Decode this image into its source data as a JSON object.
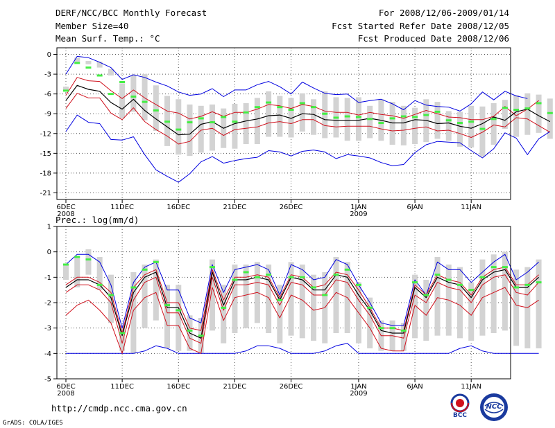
{
  "header": {
    "title": "DERF/NCC/BCC Monthly Forecast",
    "member_size": "Member Size=40",
    "variable": "Mean Surf. Temp.: °C",
    "period": "For 2008/12/06-2009/01/14",
    "started": "Fcst Started Refer Date 2008/12/05",
    "produced": "Fcst Produced Date 2008/12/06"
  },
  "footer": {
    "url": "http://cmdp.ncc.cma.gov.cn",
    "credit": "GrADS: COLA/IGES",
    "logo_left_text": "BCC",
    "logo_right_text": "NCC"
  },
  "colors": {
    "band": "#d3d3d3",
    "mean": "#000000",
    "spread": "#d0101c",
    "extreme": "#0000e0",
    "obs": "#44ee44"
  },
  "chart_data": [
    {
      "type": "line",
      "title": "Mean Surf. Temp.: °C",
      "ylim": [
        -22,
        1
      ],
      "yticks": [
        0,
        -3,
        -6,
        -9,
        -12,
        -15,
        -18,
        -21
      ],
      "xlim": [
        0,
        39.5
      ],
      "xticks": [
        {
          "label": "6DEC",
          "sub": "2008",
          "day": 0
        },
        {
          "label": "11DEC",
          "sub": "",
          "day": 5
        },
        {
          "label": "16DEC",
          "sub": "",
          "day": 10
        },
        {
          "label": "21DEC",
          "sub": "",
          "day": 15
        },
        {
          "label": "26DEC",
          "sub": "",
          "day": 20
        },
        {
          "label": "1JAN",
          "sub": "2009",
          "day": 26
        },
        {
          "label": "6JAN",
          "sub": "",
          "day": 31
        },
        {
          "label": "11JAN",
          "sub": "",
          "day": 36
        }
      ],
      "series": [
        {
          "name": "max",
          "values": [
            -3.0,
            -0.3,
            -0.5,
            -1.2,
            -2.0,
            -3.8,
            -3.1,
            -3.5,
            -4.2,
            -4.8,
            -5.7,
            -6.2,
            -6.0,
            -5.2,
            -6.4,
            -5.4,
            -5.4,
            -4.6,
            -4.1,
            -4.9,
            -6.0,
            -4.2,
            -5.1,
            -5.9,
            -6.1,
            -6.0,
            -7.3,
            -7.0,
            -6.8,
            -7.5,
            -8.4,
            -7.0,
            -7.7,
            -7.9,
            -8.0,
            -8.6,
            -7.5,
            -5.7,
            -6.9,
            -5.6,
            -6.3,
            -6.7
          ]
        },
        {
          "name": "p_high",
          "values": [
            -6.2,
            -3.5,
            -4.0,
            -4.1,
            -5.5,
            -6.7,
            -5.4,
            -6.6,
            -7.6,
            -8.6,
            -8.9,
            -9.8,
            -9.4,
            -8.7,
            -9.4,
            -8.8,
            -8.8,
            -8.3,
            -7.6,
            -7.8,
            -8.2,
            -7.6,
            -7.9,
            -8.6,
            -8.8,
            -8.8,
            -9.2,
            -8.8,
            -9.1,
            -9.3,
            -9.7,
            -9.1,
            -8.5,
            -9.0,
            -9.5,
            -9.6,
            -9.9,
            -9.9,
            -9.4,
            -7.9,
            -9.3,
            -8.3,
            -7.0
          ]
        },
        {
          "name": "mean",
          "values": [
            -7.0,
            -4.7,
            -5.3,
            -5.6,
            -7.3,
            -8.3,
            -6.8,
            -8.5,
            -9.8,
            -11.0,
            -12.2,
            -12.1,
            -10.6,
            -10.2,
            -11.2,
            -10.5,
            -10.1,
            -9.8,
            -9.3,
            -9.2,
            -9.7,
            -9.0,
            -9.1,
            -9.9,
            -10.0,
            -10.0,
            -10.0,
            -9.7,
            -10.0,
            -10.4,
            -10.4,
            -9.9,
            -10.0,
            -10.5,
            -10.4,
            -10.9,
            -11.2,
            -10.5,
            -9.5,
            -10.0,
            -8.7,
            -8.3,
            -9.3,
            -10.2
          ]
        },
        {
          "name": "p_low",
          "values": [
            -8.2,
            -5.9,
            -6.6,
            -6.6,
            -8.9,
            -9.9,
            -8.1,
            -10.2,
            -11.4,
            -12.4,
            -13.6,
            -13.2,
            -11.5,
            -11.2,
            -12.3,
            -11.4,
            -11.2,
            -11.0,
            -10.4,
            -10.2,
            -10.5,
            -9.9,
            -9.9,
            -10.8,
            -11.0,
            -10.9,
            -10.9,
            -10.9,
            -11.3,
            -11.6,
            -11.5,
            -11.2,
            -11.0,
            -11.6,
            -11.5,
            -12.0,
            -12.6,
            -11.8,
            -10.7,
            -11.0,
            -9.6,
            -9.8,
            -10.8,
            -11.8
          ]
        },
        {
          "name": "min",
          "values": [
            -11.7,
            -9.2,
            -10.3,
            -10.5,
            -12.9,
            -13.0,
            -12.5,
            -15.2,
            -17.5,
            -18.5,
            -19.4,
            -18.1,
            -16.3,
            -15.5,
            -16.5,
            -16.1,
            -15.8,
            -15.6,
            -14.6,
            -14.8,
            -15.4,
            -14.7,
            -14.5,
            -14.8,
            -15.8,
            -15.2,
            -15.4,
            -15.7,
            -16.4,
            -16.9,
            -16.7,
            -14.9,
            -13.7,
            -13.2,
            -13.3,
            -13.4,
            -14.6,
            -15.7,
            -14.3,
            -11.9,
            -12.7,
            -15.2,
            -12.8,
            -11.7
          ]
        },
        {
          "name": "band_top",
          "values": [
            -4.9,
            -0.5,
            -1.0,
            -1.1,
            -2.2,
            -4.4,
            -3.2,
            -3.0,
            -4.7,
            -6.3,
            -6.8,
            -7.6,
            -7.8,
            -7.6,
            -8.2,
            -7.5,
            -7.4,
            -6.6,
            -5.6,
            -6.3,
            -6.6,
            -5.9,
            -6.8,
            -5.6,
            -6.5,
            -6.6,
            -6.5,
            -7.8,
            -6.8,
            -7.2,
            -7.8,
            -8.1,
            -6.8,
            -7.2,
            -8.6,
            -8.7,
            -7.8,
            -7.9,
            -7.4,
            -6.9,
            -6.2,
            -5.9,
            -6.1,
            -6.7
          ]
        },
        {
          "name": "band_bottom",
          "values": [
            -5.4,
            -1.2,
            -1.5,
            -2.0,
            -3.2,
            -9.7,
            -8.7,
            -10.0,
            -11.6,
            -13.9,
            -15.2,
            -15.4,
            -14.9,
            -14.6,
            -14.2,
            -14.3,
            -13.6,
            -13.6,
            -12.5,
            -12.5,
            -12.6,
            -11.7,
            -12.2,
            -12.7,
            -12.6,
            -13.1,
            -13.1,
            -12.7,
            -13.1,
            -13.7,
            -13.8,
            -13.6,
            -13.3,
            -12.8,
            -13.1,
            -14.0,
            -14.1,
            -15.5,
            -13.7,
            -11.3,
            -12.5,
            -12.2,
            -11.9,
            -12.8
          ]
        },
        {
          "name": "observed",
          "values": [
            -5.5,
            -1.3,
            -2.0,
            -3.2,
            -6.0,
            -4.2,
            -6.4,
            -7.2,
            -8.5,
            -10.2,
            -11.4,
            -10.3,
            -9.7,
            -10.3,
            -9.5,
            -10.2,
            -8.8,
            -8.0,
            -7.3,
            -8.0,
            -8.4,
            -7.4,
            -8.0,
            -9.0,
            -9.6,
            -9.4,
            -9.5,
            -9.8,
            -10.4,
            -9.7,
            -9.4,
            -9.5,
            -9.2,
            -8.7,
            -10.0,
            -10.4,
            -10.2,
            -11.3,
            -9.8,
            -8.1,
            -8.4,
            -8.2,
            -7.4,
            -8.9
          ]
        }
      ]
    },
    {
      "type": "line",
      "title": "Prec.: log(mm/d)",
      "ylim": [
        -5,
        1
      ],
      "yticks": [
        1,
        0,
        -1,
        -2,
        -3,
        -4,
        -5
      ],
      "xlim": [
        0,
        39.5
      ],
      "xticks": [
        {
          "label": "6DEC",
          "sub": "2008",
          "day": 0
        },
        {
          "label": "11DEC",
          "sub": "",
          "day": 5
        },
        {
          "label": "16DEC",
          "sub": "",
          "day": 10
        },
        {
          "label": "21DEC",
          "sub": "",
          "day": 15
        },
        {
          "label": "26DEC",
          "sub": "",
          "day": 20
        },
        {
          "label": "1JAN",
          "sub": "2009",
          "day": 26
        },
        {
          "label": "6JAN",
          "sub": "",
          "day": 31
        },
        {
          "label": "11JAN",
          "sub": "",
          "day": 36
        }
      ],
      "series": [
        {
          "name": "max",
          "values": [
            -0.5,
            -0.1,
            -0.1,
            -0.4,
            -1.3,
            -3.0,
            -1.2,
            -0.6,
            -0.4,
            -1.5,
            -1.5,
            -2.6,
            -2.8,
            -0.5,
            -1.6,
            -0.7,
            -0.6,
            -0.5,
            -0.7,
            -1.7,
            -0.5,
            -0.7,
            -1.1,
            -1.0,
            -0.3,
            -0.5,
            -1.3,
            -2.0,
            -2.8,
            -2.9,
            -2.9,
            -1.1,
            -1.7,
            -0.4,
            -0.7,
            -0.7,
            -1.2,
            -0.8,
            -0.4,
            -0.1,
            -1.1,
            -0.8,
            -0.4
          ]
        },
        {
          "name": "p_high",
          "values": [
            -1.3,
            -1.0,
            -1.0,
            -1.2,
            -1.6,
            -3.2,
            -1.4,
            -0.9,
            -0.7,
            -2.0,
            -2.0,
            -3.0,
            -3.1,
            -0.7,
            -1.9,
            -1.0,
            -1.0,
            -0.9,
            -1.0,
            -1.8,
            -0.9,
            -1.0,
            -1.4,
            -1.3,
            -0.8,
            -0.9,
            -1.5,
            -2.2,
            -3.0,
            -3.0,
            -3.1,
            -1.3,
            -1.7,
            -0.9,
            -1.1,
            -1.2,
            -1.7,
            -1.0,
            -0.7,
            -0.6,
            -1.3,
            -1.3,
            -0.9
          ]
        },
        {
          "name": "mean",
          "values": [
            -1.4,
            -1.1,
            -1.1,
            -1.3,
            -1.8,
            -3.3,
            -1.6,
            -1.0,
            -0.8,
            -2.2,
            -2.2,
            -3.2,
            -3.4,
            -0.8,
            -2.1,
            -1.1,
            -1.1,
            -1.0,
            -1.1,
            -1.9,
            -1.0,
            -1.1,
            -1.5,
            -1.5,
            -0.9,
            -1.0,
            -1.7,
            -2.3,
            -3.1,
            -3.2,
            -3.2,
            -1.4,
            -1.8,
            -1.0,
            -1.2,
            -1.3,
            -1.8,
            -1.1,
            -0.8,
            -0.7,
            -1.4,
            -1.4,
            -1.0
          ]
        },
        {
          "name": "p_low",
          "values": [
            -1.6,
            -1.3,
            -1.3,
            -1.5,
            -2.0,
            -3.6,
            -1.9,
            -1.2,
            -1.0,
            -2.4,
            -2.4,
            -3.4,
            -3.6,
            -1.0,
            -2.3,
            -1.3,
            -1.3,
            -1.2,
            -1.3,
            -2.1,
            -1.2,
            -1.3,
            -1.7,
            -1.7,
            -1.1,
            -1.2,
            -1.9,
            -2.5,
            -3.3,
            -3.3,
            -3.4,
            -1.7,
            -2.0,
            -1.2,
            -1.4,
            -1.5,
            -2.0,
            -1.3,
            -1.0,
            -0.9,
            -1.6,
            -1.7,
            -1.2
          ]
        },
        {
          "name": "p_lowest",
          "values": [
            -2.5,
            -2.1,
            -1.9,
            -2.3,
            -2.8,
            -4.0,
            -2.3,
            -1.8,
            -1.6,
            -2.9,
            -2.9,
            -3.8,
            -4.0,
            -1.4,
            -2.7,
            -1.8,
            -1.7,
            -1.6,
            -1.8,
            -2.6,
            -1.7,
            -1.9,
            -2.3,
            -2.2,
            -1.6,
            -1.8,
            -2.4,
            -3.0,
            -3.8,
            -3.9,
            -3.9,
            -2.1,
            -2.5,
            -1.8,
            -1.9,
            -2.1,
            -2.5,
            -1.8,
            -1.6,
            -1.4,
            -2.1,
            -2.2,
            -1.9
          ]
        },
        {
          "name": "min",
          "values": [
            -4.0,
            -4.0,
            -4.0,
            -4.0,
            -4.0,
            -4.0,
            -4.0,
            -3.9,
            -3.7,
            -3.8,
            -4.0,
            -4.0,
            -4.0,
            -4.0,
            -4.0,
            -4.0,
            -3.9,
            -3.7,
            -3.7,
            -3.8,
            -4.0,
            -4.0,
            -4.0,
            -3.9,
            -3.7,
            -3.6,
            -4.0,
            -4.0,
            -4.0,
            -4.0,
            -4.0,
            -4.0,
            -4.0,
            -4.0,
            -4.0,
            -3.8,
            -3.7,
            -3.9,
            -4.0,
            -4.0,
            -4.0,
            -4.0,
            -4.0
          ]
        },
        {
          "name": "band_top",
          "values": [
            -0.5,
            -0.2,
            0.1,
            -0.2,
            -0.9,
            -2.9,
            -0.8,
            -0.5,
            -0.3,
            -1.3,
            -1.3,
            -2.5,
            -2.6,
            -0.3,
            -1.3,
            -0.5,
            -0.5,
            -0.4,
            -0.5,
            -1.3,
            -0.4,
            -0.5,
            -0.9,
            -0.8,
            -0.2,
            -0.4,
            -1.2,
            -1.8,
            -2.7,
            -2.7,
            -2.8,
            -0.9,
            -1.1,
            -0.2,
            -0.5,
            -0.6,
            -1.2,
            -0.3,
            -0.1,
            0.0,
            -0.7,
            -0.6,
            -0.3
          ]
        },
        {
          "name": "band_bottom",
          "values": [
            -1.1,
            -1.4,
            -0.9,
            -1.5,
            -2.8,
            -3.9,
            -4.0,
            -3.0,
            -2.7,
            -3.8,
            -3.9,
            -3.9,
            -4.0,
            -3.1,
            -3.6,
            -3.2,
            -3.0,
            -2.8,
            -3.2,
            -3.6,
            -3.3,
            -3.4,
            -3.5,
            -3.6,
            -3.2,
            -3.2,
            -3.6,
            -3.8,
            -3.9,
            -3.9,
            -3.9,
            -3.4,
            -3.5,
            -3.3,
            -3.3,
            -3.4,
            -3.5,
            -3.3,
            -3.2,
            -3.1,
            -3.7,
            -3.8,
            -3.8
          ]
        },
        {
          "name": "observed",
          "values": [
            -0.5,
            -0.2,
            -0.3,
            -1.3,
            -1.7,
            -3.2,
            -1.4,
            -0.7,
            -0.4,
            -2.1,
            -2.3,
            -3.1,
            -3.3,
            -0.6,
            -2.2,
            -1.1,
            -0.8,
            -1.0,
            -0.9,
            -1.9,
            -1.0,
            -1.0,
            -1.4,
            -1.7,
            -0.9,
            -0.7,
            -1.3,
            -2.2,
            -3.0,
            -3.0,
            -3.1,
            -1.2,
            -1.7,
            -0.9,
            -1.1,
            -1.3,
            -1.5,
            -1.0,
            -0.6,
            -0.6,
            -1.4,
            -1.3,
            -1.2
          ]
        }
      ]
    }
  ]
}
